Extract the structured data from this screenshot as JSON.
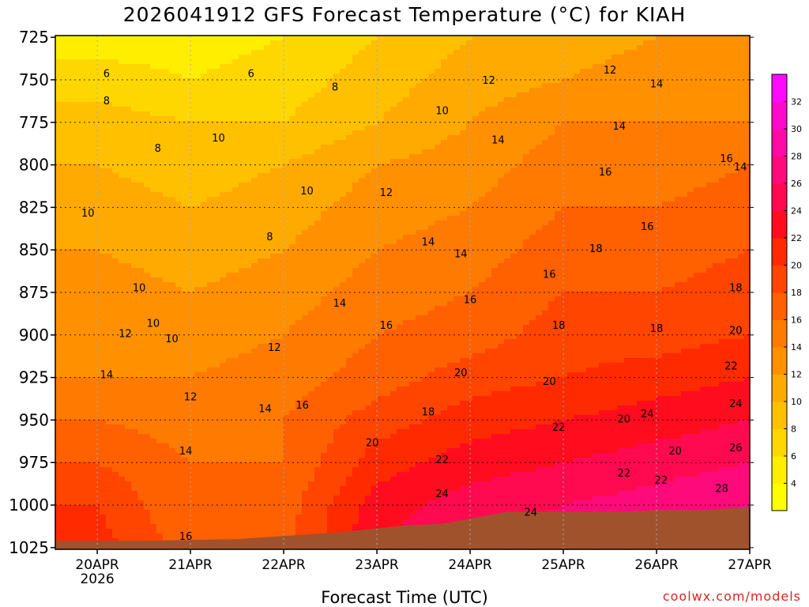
{
  "title": "2026041912 GFS Forecast Temperature (°C) for KIAH",
  "footer": {
    "credit": "coolwx.com/models"
  },
  "chart_data": {
    "type": "heatmap",
    "title": "2026041912 GFS Forecast Temperature (°C) for KIAH",
    "xlabel": "Forecast Time (UTC)",
    "ylabel": "",
    "x_ticks": [
      {
        "label": "20APR",
        "sub": "2026"
      },
      {
        "label": "21APR",
        "sub": ""
      },
      {
        "label": "22APR",
        "sub": ""
      },
      {
        "label": "23APR",
        "sub": ""
      },
      {
        "label": "24APR",
        "sub": ""
      },
      {
        "label": "25APR",
        "sub": ""
      },
      {
        "label": "26APR",
        "sub": ""
      },
      {
        "label": "27APR",
        "sub": ""
      }
    ],
    "xlim_days": [
      -0.45,
      7.0
    ],
    "y_levels_hpa": [
      725,
      750,
      775,
      800,
      825,
      850,
      875,
      900,
      925,
      950,
      975,
      1000,
      1025
    ],
    "ylim_hpa": [
      724,
      1026
    ],
    "colorbar": {
      "labels": [
        4,
        6,
        8,
        10,
        12,
        14,
        16,
        18,
        20,
        22,
        24,
        26,
        28,
        30,
        32
      ],
      "min": 2,
      "max": 34,
      "colors": [
        "#ffff00",
        "#ffee00",
        "#ffd700",
        "#ffc000",
        "#ffaa00",
        "#ff9000",
        "#ff7a00",
        "#ff6000",
        "#ff4500",
        "#ff2a00",
        "#ff0c1e",
        "#ff0a50",
        "#ff0a7a",
        "#ff0aa5",
        "#ff0acd",
        "#ff0aff"
      ]
    },
    "contour_values": [
      6,
      8,
      10,
      12,
      14,
      16,
      18,
      20,
      22,
      24,
      26,
      28
    ],
    "series": [
      {
        "name": "temperature_profile_day0",
        "x_day": 0.0,
        "values": [
          5,
          7,
          9,
          10,
          11,
          12,
          13,
          13,
          14,
          16,
          18,
          20,
          21
        ]
      },
      {
        "name": "temperature_profile_day1",
        "x_day": 1.0,
        "values": [
          5,
          6,
          8,
          9,
          10,
          11,
          12,
          13,
          14,
          15,
          16,
          16,
          17
        ]
      },
      {
        "name": "temperature_profile_day2",
        "x_day": 2.0,
        "values": [
          6,
          7,
          8,
          10,
          11,
          12,
          13,
          14,
          15,
          16,
          16,
          17,
          17
        ]
      },
      {
        "name": "temperature_profile_day3",
        "x_day": 3.0,
        "values": [
          8,
          9,
          10,
          12,
          13,
          14,
          15,
          16,
          17,
          19,
          21,
          23,
          24
        ]
      },
      {
        "name": "temperature_profile_day4",
        "x_day": 4.0,
        "values": [
          10,
          11,
          12,
          13,
          14,
          15,
          16,
          17,
          19,
          21,
          23,
          25,
          26
        ]
      },
      {
        "name": "temperature_profile_day5",
        "x_day": 5.0,
        "values": [
          11,
          12,
          14,
          15,
          16,
          17,
          18,
          19,
          20,
          22,
          24,
          26,
          27
        ]
      },
      {
        "name": "temperature_profile_day6",
        "x_day": 6.0,
        "values": [
          12,
          13,
          14,
          15,
          16,
          17,
          18,
          19,
          21,
          23,
          25,
          27,
          28
        ]
      },
      {
        "name": "temperature_profile_day7",
        "x_day": 7.0,
        "values": [
          12,
          13,
          14,
          16,
          17,
          18,
          19,
          20,
          22,
          24,
          26,
          28,
          30
        ]
      }
    ],
    "contour_labels": [
      {
        "value": "6",
        "x_day": 0.1,
        "p": 746
      },
      {
        "value": "6",
        "x_day": 1.65,
        "p": 746
      },
      {
        "value": "8",
        "x_day": 0.1,
        "p": 762
      },
      {
        "value": "8",
        "x_day": 2.55,
        "p": 754
      },
      {
        "value": "8",
        "x_day": 0.65,
        "p": 790
      },
      {
        "value": "8",
        "x_day": 1.85,
        "p": 842
      },
      {
        "value": "10",
        "x_day": 1.3,
        "p": 784
      },
      {
        "value": "10",
        "x_day": 3.7,
        "p": 768
      },
      {
        "value": "10",
        "x_day": 2.25,
        "p": 815
      },
      {
        "value": "10",
        "x_day": -0.1,
        "p": 828
      },
      {
        "value": "10",
        "x_day": 0.45,
        "p": 872
      },
      {
        "value": "10",
        "x_day": 0.6,
        "p": 893
      },
      {
        "value": "10",
        "x_day": 0.8,
        "p": 902
      },
      {
        "value": "12",
        "x_day": 5.5,
        "p": 744
      },
      {
        "value": "12",
        "x_day": 4.2,
        "p": 750
      },
      {
        "value": "12",
        "x_day": 3.1,
        "p": 816
      },
      {
        "value": "12",
        "x_day": 0.3,
        "p": 899
      },
      {
        "value": "12",
        "x_day": 1.9,
        "p": 907
      },
      {
        "value": "12",
        "x_day": 1.0,
        "p": 936
      },
      {
        "value": "14",
        "x_day": 6.0,
        "p": 752
      },
      {
        "value": "14",
        "x_day": 5.6,
        "p": 777
      },
      {
        "value": "14",
        "x_day": 4.3,
        "p": 785
      },
      {
        "value": "14",
        "x_day": 3.55,
        "p": 845
      },
      {
        "value": "14",
        "x_day": 3.9,
        "p": 852
      },
      {
        "value": "14",
        "x_day": 2.6,
        "p": 881
      },
      {
        "value": "14",
        "x_day": 0.1,
        "p": 923
      },
      {
        "value": "14",
        "x_day": 1.8,
        "p": 943
      },
      {
        "value": "14",
        "x_day": 0.95,
        "p": 968
      },
      {
        "value": "14",
        "x_day": 6.9,
        "p": 801
      },
      {
        "value": "16",
        "x_day": 6.75,
        "p": 796
      },
      {
        "value": "16",
        "x_day": 5.45,
        "p": 804
      },
      {
        "value": "16",
        "x_day": 5.9,
        "p": 836
      },
      {
        "value": "16",
        "x_day": 4.0,
        "p": 879
      },
      {
        "value": "16",
        "x_day": 3.1,
        "p": 894
      },
      {
        "value": "16",
        "x_day": 2.2,
        "p": 941
      },
      {
        "value": "16",
        "x_day": 4.85,
        "p": 864
      },
      {
        "value": "16",
        "x_day": 0.95,
        "p": 1018
      },
      {
        "value": "18",
        "x_day": 5.35,
        "p": 849
      },
      {
        "value": "18",
        "x_day": 4.95,
        "p": 894
      },
      {
        "value": "18",
        "x_day": 6.0,
        "p": 896
      },
      {
        "value": "18",
        "x_day": 6.85,
        "p": 872
      },
      {
        "value": "18",
        "x_day": 3.55,
        "p": 945
      },
      {
        "value": "20",
        "x_day": 6.85,
        "p": 897
      },
      {
        "value": "20",
        "x_day": 4.85,
        "p": 927
      },
      {
        "value": "20",
        "x_day": 3.9,
        "p": 922
      },
      {
        "value": "20",
        "x_day": 5.65,
        "p": 949
      },
      {
        "value": "20",
        "x_day": 2.95,
        "p": 963
      },
      {
        "value": "20",
        "x_day": 6.2,
        "p": 968
      },
      {
        "value": "22",
        "x_day": 6.8,
        "p": 918
      },
      {
        "value": "22",
        "x_day": 4.95,
        "p": 954
      },
      {
        "value": "22",
        "x_day": 3.7,
        "p": 973
      },
      {
        "value": "22",
        "x_day": 5.65,
        "p": 981
      },
      {
        "value": "22",
        "x_day": 6.05,
        "p": 985
      },
      {
        "value": "24",
        "x_day": 6.85,
        "p": 940
      },
      {
        "value": "24",
        "x_day": 5.9,
        "p": 946
      },
      {
        "value": "24",
        "x_day": 3.7,
        "p": 993
      },
      {
        "value": "24",
        "x_day": 4.65,
        "p": 1004
      },
      {
        "value": "26",
        "x_day": 6.85,
        "p": 966
      },
      {
        "value": "28",
        "x_day": 6.7,
        "p": 990
      }
    ],
    "surface_pressure_hpa": [
      {
        "x_day": -0.45,
        "p": 1021
      },
      {
        "x_day": 0.5,
        "p": 1021
      },
      {
        "x_day": 1.5,
        "p": 1020
      },
      {
        "x_day": 2.6,
        "p": 1016
      },
      {
        "x_day": 3.3,
        "p": 1012
      },
      {
        "x_day": 3.7,
        "p": 1011
      },
      {
        "x_day": 4.4,
        "p": 1004
      },
      {
        "x_day": 5.0,
        "p": 1004
      },
      {
        "x_day": 5.6,
        "p": 1004
      },
      {
        "x_day": 6.0,
        "p": 1003
      },
      {
        "x_day": 6.5,
        "p": 1003
      },
      {
        "x_day": 7.0,
        "p": 1001
      }
    ]
  }
}
